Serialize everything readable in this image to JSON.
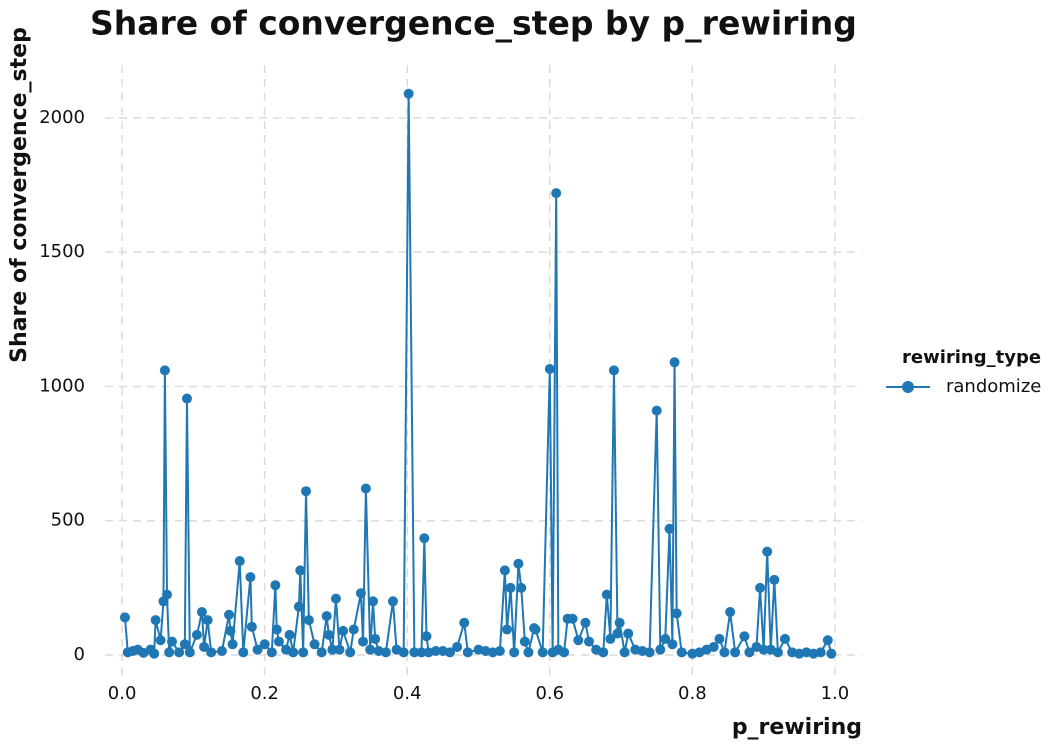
{
  "chart_data": {
    "type": "line",
    "title": "Share of convergence_step by p_rewiring",
    "x_label": "p_rewiring",
    "y_label": "Share of convergence_step",
    "legend_title": "rewiring_type",
    "legend_position": "right",
    "grid": true,
    "xlim": [
      -0.024,
      1.038
    ],
    "ylim": [
      -93,
      2197
    ],
    "xticks": [
      {
        "value": 0,
        "label": "0.0"
      },
      0.2,
      0.4,
      0.6,
      0.8,
      {
        "value": 1,
        "label": "1.0"
      }
    ],
    "yticks": [
      0,
      500,
      1000,
      1500,
      2000
    ],
    "x": [
      0.004,
      0.008,
      0.015,
      0.022,
      0.03,
      0.04,
      0.045,
      0.047,
      0.054,
      0.058,
      0.06,
      0.063,
      0.066,
      0.07,
      0.08,
      0.088,
      0.091,
      0.095,
      0.105,
      0.112,
      0.115,
      0.12,
      0.125,
      0.14,
      0.15,
      0.152,
      0.155,
      0.165,
      0.17,
      0.18,
      0.182,
      0.19,
      0.2,
      0.21,
      0.215,
      0.217,
      0.22,
      0.23,
      0.235,
      0.24,
      0.248,
      0.25,
      0.254,
      0.258,
      0.262,
      0.27,
      0.28,
      0.287,
      0.29,
      0.295,
      0.3,
      0.305,
      0.31,
      0.32,
      0.325,
      0.335,
      0.338,
      0.342,
      0.348,
      0.352,
      0.355,
      0.36,
      0.37,
      0.38,
      0.385,
      0.395,
      0.402,
      0.41,
      0.42,
      0.424,
      0.427,
      0.43,
      0.44,
      0.45,
      0.46,
      0.47,
      0.48,
      0.485,
      0.5,
      0.51,
      0.52,
      0.53,
      0.537,
      0.54,
      0.545,
      0.55,
      0.556,
      0.56,
      0.565,
      0.57,
      0.578,
      0.58,
      0.59,
      0.6,
      0.604,
      0.609,
      0.612,
      0.62,
      0.625,
      0.632,
      0.64,
      0.65,
      0.655,
      0.665,
      0.675,
      0.68,
      0.685,
      0.69,
      0.695,
      0.698,
      0.705,
      0.71,
      0.72,
      0.73,
      0.74,
      0.75,
      0.755,
      0.762,
      0.768,
      0.772,
      0.775,
      0.778,
      0.785,
      0.8,
      0.81,
      0.82,
      0.83,
      0.838,
      0.845,
      0.853,
      0.86,
      0.873,
      0.88,
      0.89,
      0.895,
      0.9,
      0.905,
      0.91,
      0.915,
      0.92,
      0.93,
      0.94,
      0.95,
      0.96,
      0.97,
      0.98,
      0.99,
      0.995
    ],
    "series": [
      {
        "name": "randomize",
        "color": "#1f77b4",
        "values": [
          140,
          10,
          15,
          20,
          8,
          20,
          5,
          130,
          55,
          200,
          1060,
          225,
          10,
          50,
          10,
          40,
          955,
          10,
          75,
          160,
          30,
          130,
          10,
          15,
          150,
          90,
          40,
          350,
          10,
          290,
          105,
          20,
          40,
          10,
          260,
          95,
          50,
          20,
          75,
          10,
          180,
          315,
          10,
          610,
          130,
          40,
          10,
          145,
          75,
          20,
          210,
          20,
          90,
          10,
          95,
          230,
          50,
          620,
          20,
          200,
          60,
          15,
          10,
          200,
          20,
          10,
          2090,
          10,
          10,
          435,
          70,
          10,
          15,
          15,
          10,
          30,
          120,
          10,
          20,
          15,
          10,
          15,
          315,
          95,
          250,
          10,
          340,
          250,
          50,
          10,
          100,
          95,
          10,
          1065,
          10,
          1720,
          20,
          10,
          135,
          135,
          55,
          120,
          50,
          20,
          10,
          225,
          60,
          1060,
          80,
          120,
          10,
          80,
          20,
          15,
          10,
          910,
          20,
          60,
          470,
          40,
          1090,
          155,
          10,
          5,
          10,
          20,
          30,
          60,
          10,
          160,
          10,
          70,
          10,
          30,
          250,
          20,
          385,
          20,
          280,
          10,
          60,
          10,
          5,
          10,
          5,
          10,
          55,
          5
        ]
      }
    ]
  }
}
